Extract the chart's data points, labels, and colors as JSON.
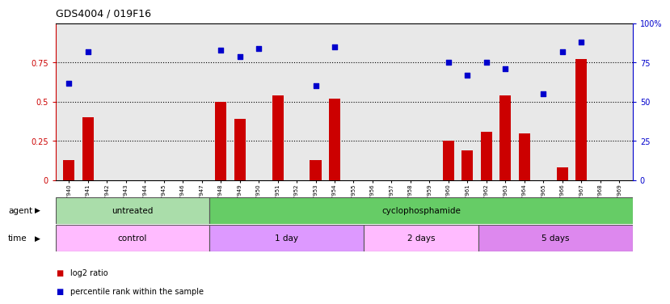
{
  "title": "GDS4004 / 019F16",
  "samples": [
    "GSM677940",
    "GSM677941",
    "GSM677942",
    "GSM677943",
    "GSM677944",
    "GSM677945",
    "GSM677946",
    "GSM677947",
    "GSM677948",
    "GSM677949",
    "GSM677950",
    "GSM677951",
    "GSM677952",
    "GSM677953",
    "GSM677954",
    "GSM677955",
    "GSM677956",
    "GSM677957",
    "GSM677958",
    "GSM677959",
    "GSM677960",
    "GSM677961",
    "GSM677962",
    "GSM677963",
    "GSM677964",
    "GSM677965",
    "GSM677966",
    "GSM677967",
    "GSM677968",
    "GSM677969"
  ],
  "log2_ratio": [
    0.13,
    0.4,
    0.0,
    0.0,
    0.0,
    0.0,
    0.0,
    0.0,
    0.5,
    0.39,
    0.0,
    0.54,
    0.0,
    0.13,
    0.52,
    0.0,
    0.0,
    0.0,
    0.0,
    0.0,
    0.25,
    0.19,
    0.31,
    0.54,
    0.3,
    0.0,
    0.08,
    0.77,
    0.0,
    0.0
  ],
  "percentile_rank": [
    0.62,
    0.82,
    null,
    null,
    null,
    null,
    null,
    null,
    0.83,
    0.79,
    0.84,
    null,
    null,
    0.6,
    0.85,
    null,
    null,
    null,
    null,
    null,
    0.75,
    0.67,
    0.75,
    0.71,
    null,
    0.55,
    0.82,
    0.88,
    null,
    null
  ],
  "bar_color": "#cc0000",
  "scatter_color": "#0000cc",
  "background_color": "#ffffff",
  "plot_bg_color": "#e8e8e8",
  "ylim_left": [
    0,
    1.0
  ],
  "ylim_right": [
    0,
    100
  ],
  "yticks_left": [
    0,
    0.25,
    0.5,
    0.75
  ],
  "yticks_right": [
    0,
    25,
    50,
    75,
    100
  ],
  "ytick_labels_left": [
    "0",
    "0.25",
    "0.5",
    "0.75"
  ],
  "ytick_labels_right": [
    "0",
    "25",
    "50",
    "75",
    "100%"
  ],
  "agent_groups": [
    {
      "label": "untreated",
      "start": 0,
      "end": 8,
      "color": "#aaddaa"
    },
    {
      "label": "cyclophosphamide",
      "start": 8,
      "end": 30,
      "color": "#66cc66"
    }
  ],
  "time_groups": [
    {
      "label": "control",
      "start": 0,
      "end": 8,
      "color": "#ffbbff"
    },
    {
      "label": "1 day",
      "start": 8,
      "end": 16,
      "color": "#dd99ff"
    },
    {
      "label": "2 days",
      "start": 16,
      "end": 22,
      "color": "#ffbbff"
    },
    {
      "label": "5 days",
      "start": 22,
      "end": 30,
      "color": "#dd88ee"
    }
  ],
  "legend_red_label": "log2 ratio",
  "legend_blue_label": "percentile rank within the sample"
}
